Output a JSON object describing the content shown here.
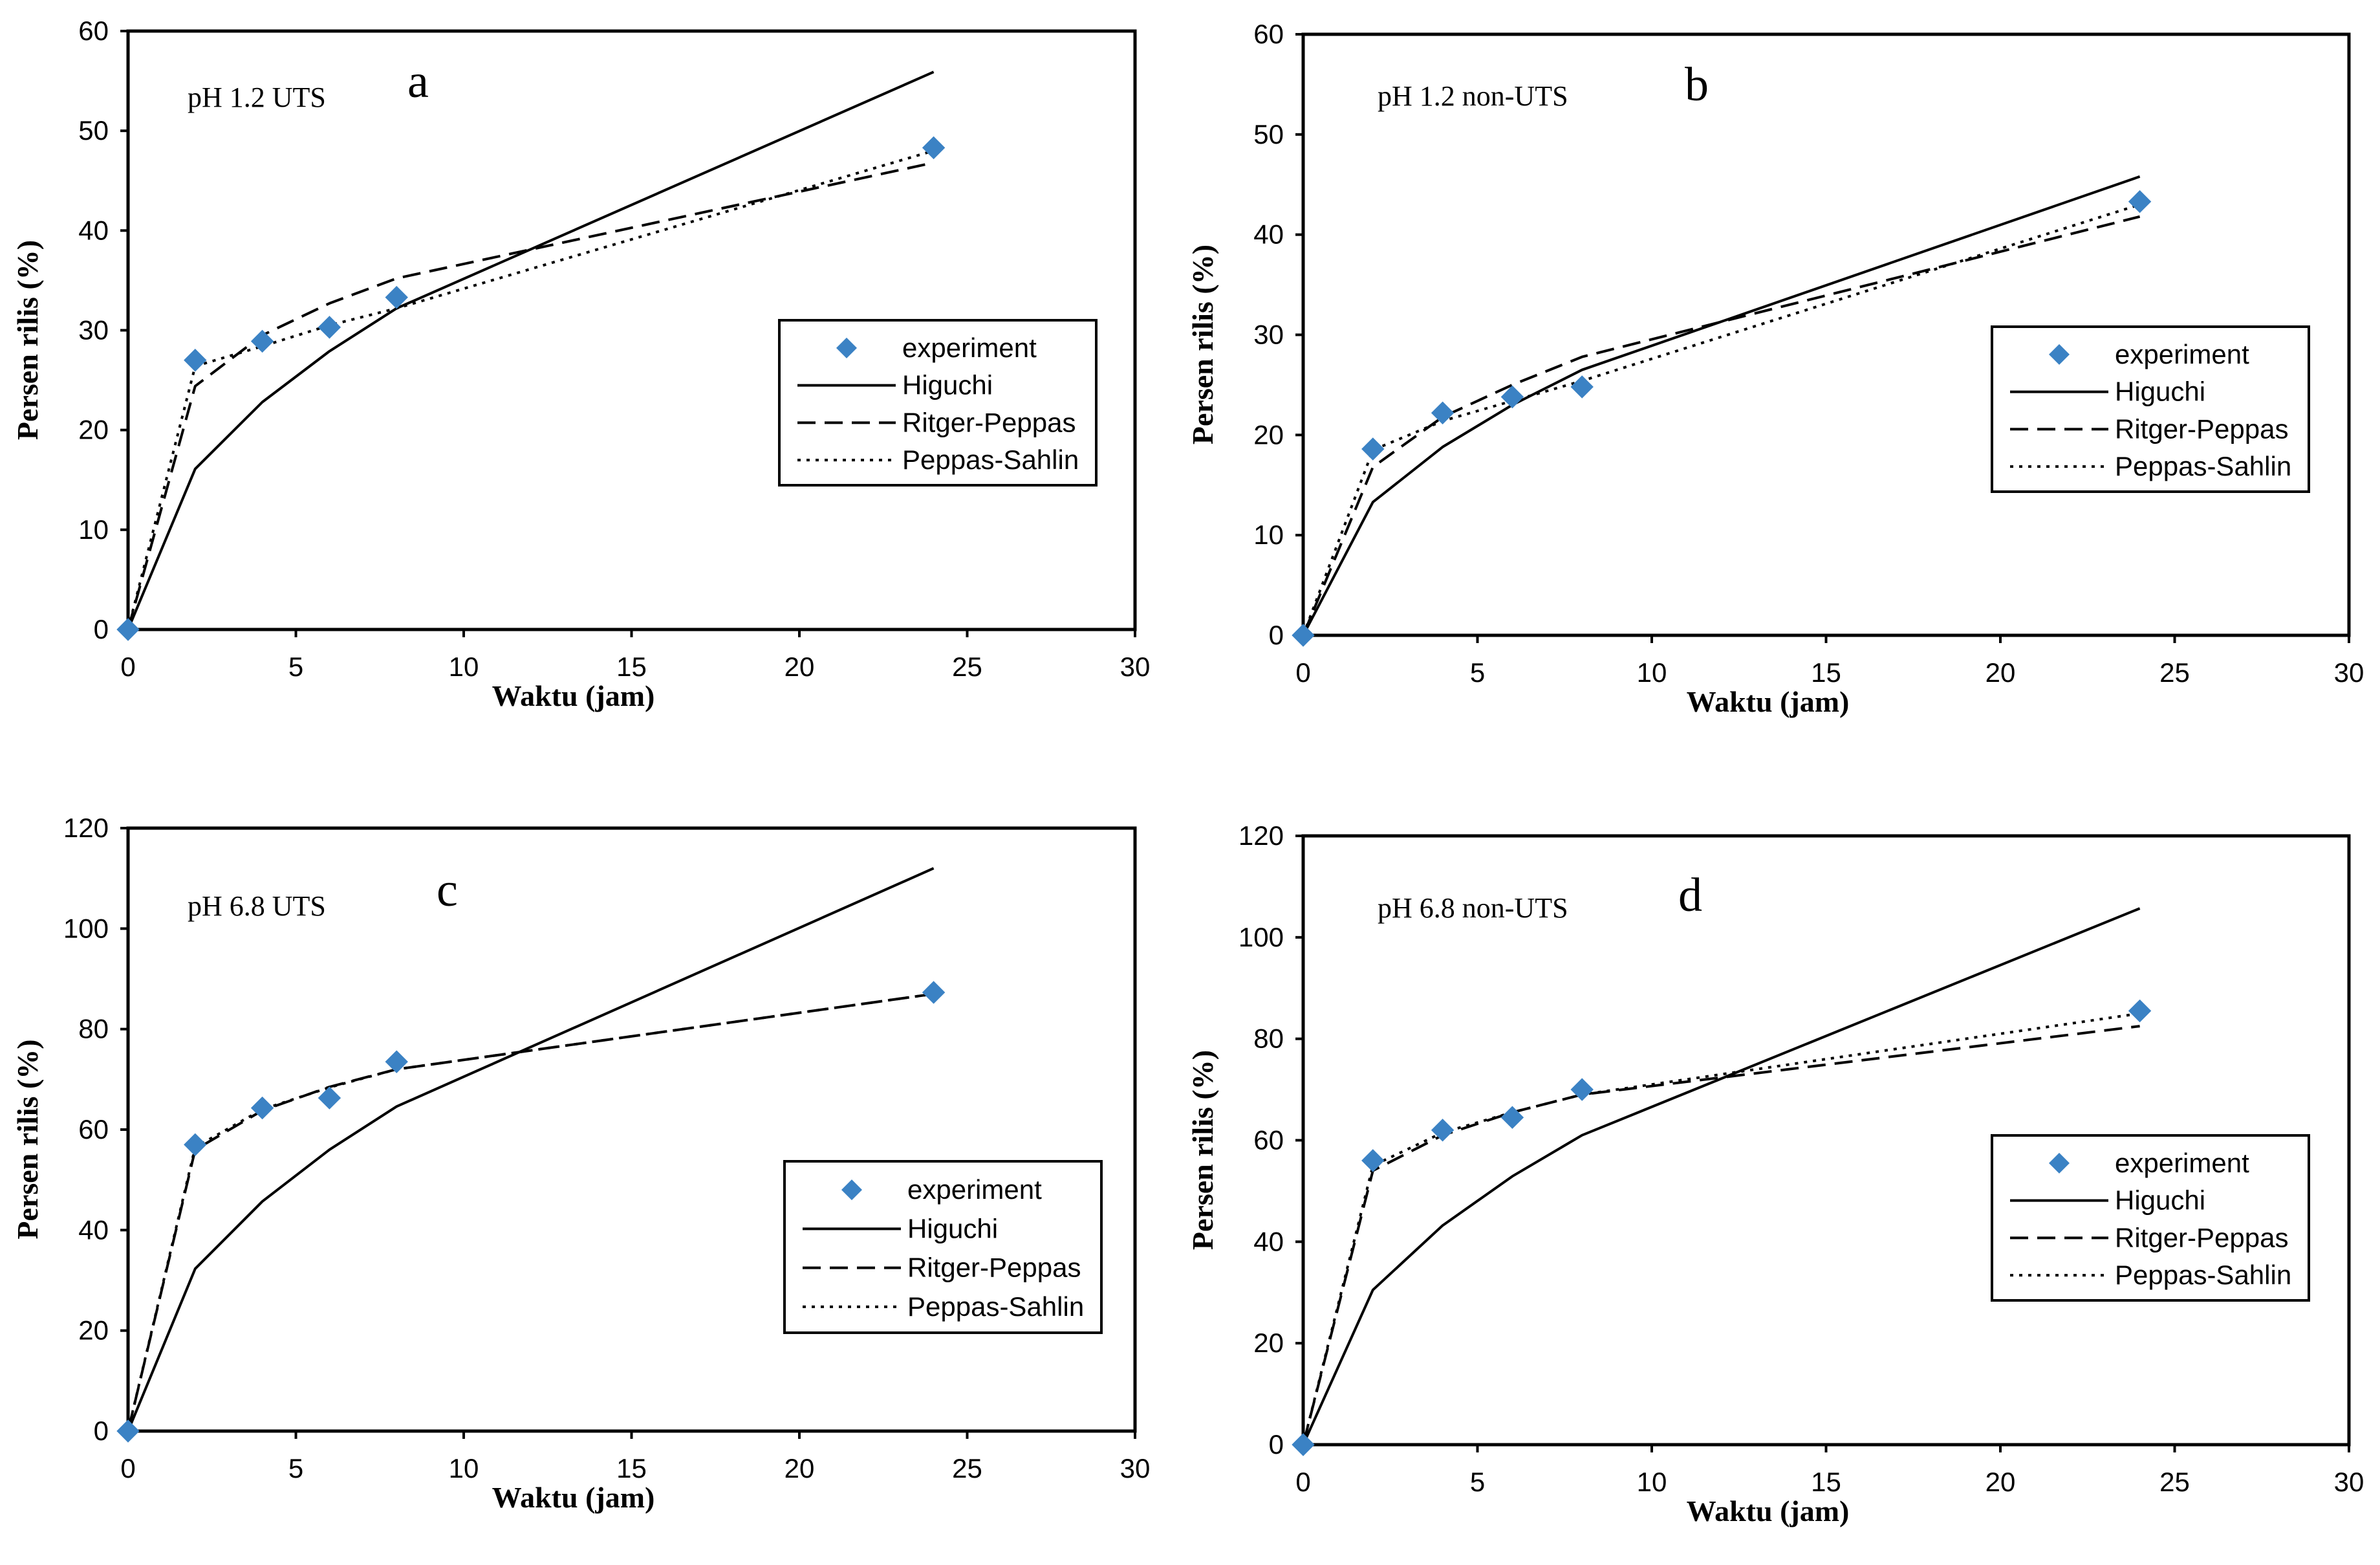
{
  "chart_data": [
    {
      "panel": "a",
      "type": "line",
      "title": "pH 1.2 UTS",
      "xlabel": "Waktu (jam)",
      "ylabel": "Persen rilis (%)",
      "xlim": [
        0,
        30
      ],
      "ylim": [
        0,
        60
      ],
      "xticks": [
        "0",
        "5",
        "10",
        "15",
        "20",
        "25",
        "30"
      ],
      "yticks": [
        "0",
        "10",
        "20",
        "30",
        "40",
        "50",
        "60"
      ],
      "legend": [
        "experiment",
        "Higuchi",
        "Ritger-Peppas",
        "Peppas-Sahlin"
      ],
      "series": [
        {
          "name": "experiment",
          "style": "marker",
          "x": [
            0,
            2,
            4,
            6,
            8,
            24
          ],
          "y": [
            0,
            27,
            28.9,
            30.3,
            33.3,
            48.3
          ]
        },
        {
          "name": "Higuchi",
          "style": "solid",
          "x": [
            0,
            2,
            4,
            6,
            8,
            24
          ],
          "y": [
            0,
            16.1,
            22.8,
            27.9,
            32.2,
            55.9
          ]
        },
        {
          "name": "Ritger-Peppas",
          "style": "dashed",
          "x": [
            0,
            2,
            4,
            6,
            8,
            24
          ],
          "y": [
            0,
            24.4,
            29.5,
            32.7,
            35.2,
            46.8
          ]
        },
        {
          "name": "Peppas-Sahlin",
          "style": "dotted",
          "x": [
            0,
            2,
            4,
            6,
            8,
            24
          ],
          "y": [
            0,
            26.4,
            28.4,
            30.5,
            32.2,
            48
          ]
        }
      ]
    },
    {
      "panel": "b",
      "type": "line",
      "title": "pH 1.2 non-UTS",
      "xlabel": "Waktu (jam)",
      "ylabel": "Persen rilis (%)",
      "xlim": [
        0,
        30
      ],
      "ylim": [
        0,
        60
      ],
      "xticks": [
        "0",
        "5",
        "10",
        "15",
        "20",
        "25",
        "30"
      ],
      "yticks": [
        "0",
        "10",
        "20",
        "30",
        "40",
        "50",
        "60"
      ],
      "legend": [
        "experiment",
        "Higuchi",
        "Ritger-Peppas",
        "Peppas-Sahlin"
      ],
      "series": [
        {
          "name": "experiment",
          "style": "marker",
          "x": [
            0,
            2,
            4,
            6,
            8,
            24
          ],
          "y": [
            0,
            18.6,
            22.2,
            23.8,
            24.8,
            43.3
          ]
        },
        {
          "name": "Higuchi",
          "style": "solid",
          "x": [
            0,
            2,
            4,
            6,
            8,
            24
          ],
          "y": [
            0,
            13.3,
            18.8,
            23,
            26.5,
            45.8
          ]
        },
        {
          "name": "Ritger-Peppas",
          "style": "dashed",
          "x": [
            0,
            2,
            4,
            6,
            8,
            24
          ],
          "y": [
            0,
            16.8,
            21.8,
            25,
            27.8,
            41.8
          ]
        },
        {
          "name": "Peppas-Sahlin",
          "style": "dotted",
          "x": [
            0,
            2,
            4,
            6,
            8,
            24
          ],
          "y": [
            0,
            18.5,
            21.4,
            23.4,
            25.4,
            43
          ]
        }
      ]
    },
    {
      "panel": "c",
      "type": "line",
      "title": "pH 6.8 UTS",
      "xlabel": "Waktu (jam)",
      "ylabel": "Persen rilis (%)",
      "xlim": [
        0,
        30
      ],
      "ylim": [
        0,
        120
      ],
      "xticks": [
        "0",
        "5",
        "10",
        "15",
        "20",
        "25",
        "30"
      ],
      "yticks": [
        "0",
        "20",
        "40",
        "60",
        "80",
        "100",
        "120"
      ],
      "legend": [
        "experiment",
        "Higuchi",
        "Ritger-Peppas",
        "Peppas-Sahlin"
      ],
      "series": [
        {
          "name": "experiment",
          "style": "marker",
          "x": [
            0,
            2,
            4,
            6,
            8,
            24
          ],
          "y": [
            0,
            57,
            64.3,
            66.3,
            73.5,
            87.3
          ]
        },
        {
          "name": "Higuchi",
          "style": "solid",
          "x": [
            0,
            2,
            4,
            6,
            8,
            24
          ],
          "y": [
            0,
            32.3,
            45.7,
            56,
            64.6,
            112
          ]
        },
        {
          "name": "Ritger-Peppas",
          "style": "dashed",
          "x": [
            0,
            2,
            4,
            6,
            8,
            24
          ],
          "y": [
            0,
            56,
            63.8,
            68.5,
            72,
            87
          ]
        },
        {
          "name": "Peppas-Sahlin",
          "style": "dotted",
          "x": [
            0,
            2,
            4,
            6,
            8,
            24
          ],
          "y": [
            0,
            56.5,
            64,
            68.4,
            72,
            87
          ]
        }
      ]
    },
    {
      "panel": "d",
      "type": "line",
      "title": "pH 6.8 non-UTS",
      "xlabel": "Waktu (jam)",
      "ylabel": "Persen rilis (%)",
      "xlim": [
        0,
        30
      ],
      "ylim": [
        0,
        120
      ],
      "xticks": [
        "0",
        "5",
        "10",
        "15",
        "20",
        "25",
        "30"
      ],
      "yticks": [
        "0",
        "20",
        "40",
        "60",
        "80",
        "100",
        "120"
      ],
      "legend": [
        "experiment",
        "Higuchi",
        "Ritger-Peppas",
        "Peppas-Sahlin"
      ],
      "series": [
        {
          "name": "experiment",
          "style": "marker",
          "x": [
            0,
            2,
            4,
            6,
            8,
            24
          ],
          "y": [
            0,
            56,
            62,
            64.5,
            70,
            85.5
          ]
        },
        {
          "name": "Higuchi",
          "style": "solid",
          "x": [
            0,
            2,
            4,
            6,
            8,
            24
          ],
          "y": [
            0,
            30.5,
            43.2,
            52.9,
            61,
            105.7
          ]
        },
        {
          "name": "Ritger-Peppas",
          "style": "dashed",
          "x": [
            0,
            2,
            4,
            6,
            8,
            24
          ],
          "y": [
            0,
            54,
            61,
            65.5,
            69,
            82.5
          ]
        },
        {
          "name": "Peppas-Sahlin",
          "style": "dotted",
          "x": [
            0,
            2,
            4,
            6,
            8,
            24
          ],
          "y": [
            0,
            55,
            61.5,
            65.5,
            69,
            85
          ]
        }
      ]
    }
  ],
  "colors": {
    "marker": "#3B82C4",
    "line": "#000000",
    "background": "#ffffff"
  }
}
